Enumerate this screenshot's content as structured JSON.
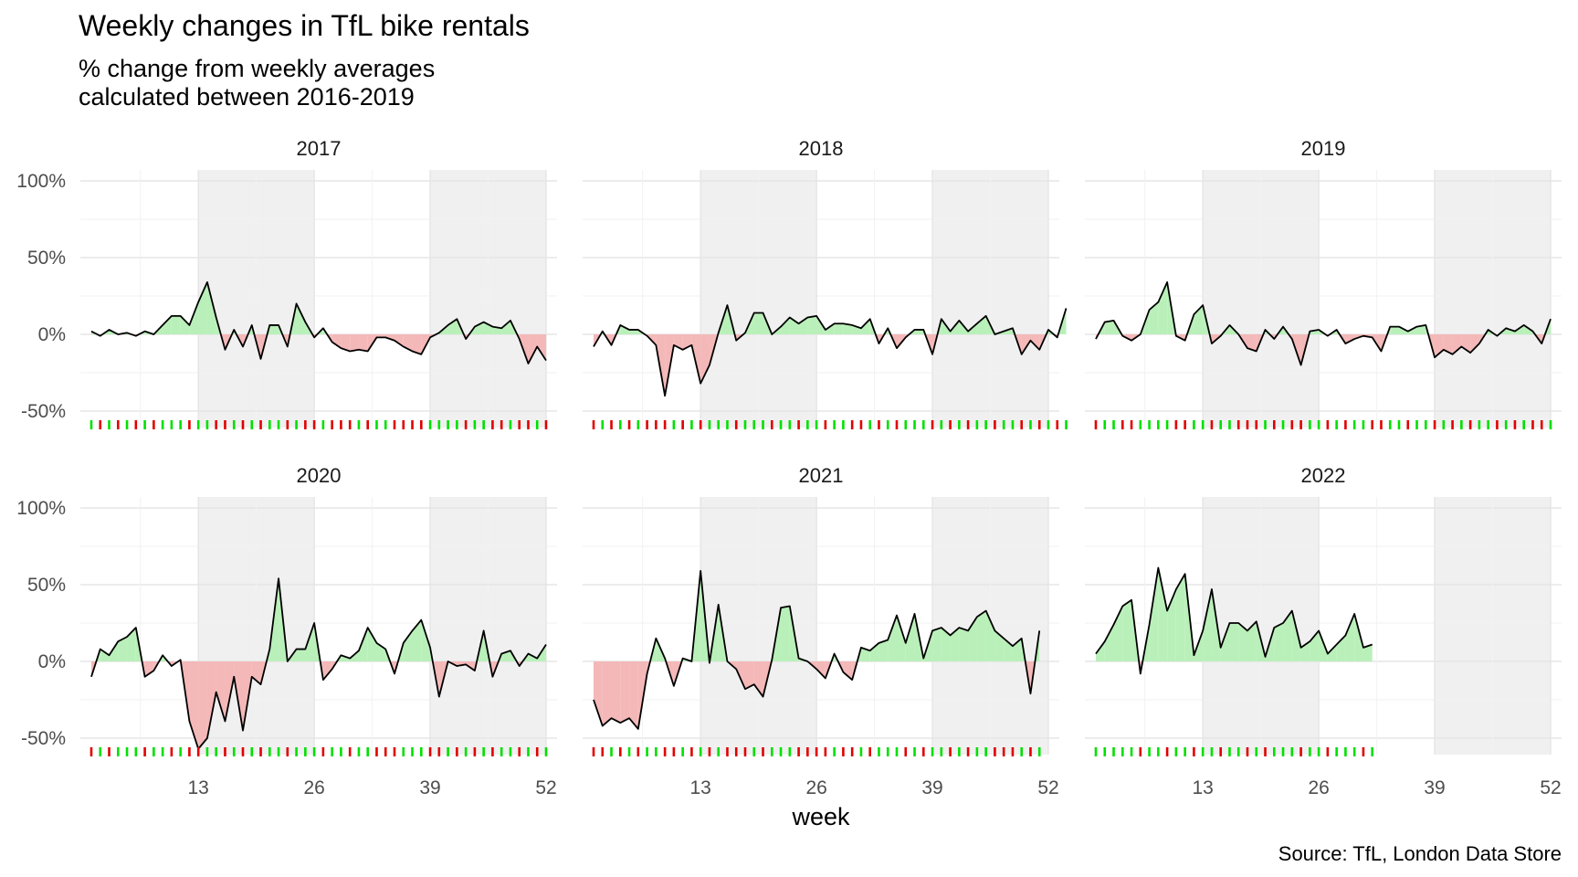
{
  "title": "Weekly changes in TfL bike rentals",
  "subtitle_line1": "% change from weekly averages",
  "subtitle_line2": "calculated between 2016-2019",
  "caption": "Source: TfL, London Data Store",
  "chart_data": {
    "type": "area",
    "xlabel": "week",
    "ylabel": "",
    "x_ticks": [
      13,
      26,
      39,
      52
    ],
    "y_ticks": [
      -50,
      0,
      50,
      100
    ],
    "y_tick_labels": [
      "-50%",
      "0%",
      "50%",
      "100%"
    ],
    "xlim": [
      1,
      52
    ],
    "ylim": [
      -58,
      100
    ],
    "shaded_week_ranges": [
      [
        13,
        26
      ],
      [
        39,
        52
      ]
    ],
    "colors": {
      "positive_fill": "#b9f0b9",
      "negative_fill": "#f4b8b8",
      "line": "#000000",
      "rug_up": "#00e000",
      "rug_down": "#e00000",
      "shade": "#f0f0f0",
      "grid": "#e5e5e5"
    },
    "facets": [
      {
        "year": "2017",
        "values": [
          2,
          -1,
          3,
          0,
          1,
          -1,
          2,
          0,
          6,
          12,
          12,
          6,
          21,
          34,
          11,
          -10,
          3,
          -8,
          6,
          -16,
          6,
          6,
          -8,
          20,
          8,
          -2,
          4,
          -5,
          -9,
          -11,
          -10,
          -11,
          -2,
          -2,
          -4,
          -8,
          -11,
          -13,
          -2,
          1,
          6,
          10,
          -3,
          5,
          8,
          5,
          4,
          9,
          -3,
          -19,
          -8,
          -17
        ]
      },
      {
        "year": "2018",
        "values": [
          -8,
          2,
          -7,
          6,
          3,
          3,
          -1,
          -7,
          -40,
          -7,
          -10,
          -7,
          -32,
          -20,
          1,
          19,
          -4,
          1,
          14,
          14,
          0,
          5,
          11,
          7,
          11,
          12,
          3,
          7,
          7,
          6,
          4,
          10,
          -6,
          4,
          -9,
          -2,
          3,
          3,
          -13,
          10,
          2,
          9,
          2,
          7,
          12,
          0,
          2,
          4,
          -13,
          -4,
          -10,
          3,
          -2,
          17
        ]
      },
      {
        "year": "2019",
        "values": [
          -3,
          8,
          9,
          -1,
          -4,
          0,
          16,
          21,
          34,
          -1,
          -4,
          13,
          19,
          -6,
          -1,
          6,
          0,
          -9,
          -11,
          3,
          -3,
          5,
          -3,
          -20,
          2,
          3,
          -1,
          3,
          -6,
          -3,
          -1,
          -2,
          -11,
          5,
          5,
          2,
          5,
          6,
          -15,
          -10,
          -13,
          -8,
          -12,
          -6,
          3,
          -1,
          4,
          2,
          6,
          2,
          -6,
          10
        ]
      },
      {
        "year": "2020",
        "values": [
          -10,
          8,
          4,
          13,
          16,
          22,
          -10,
          -6,
          4,
          -3,
          1,
          -39,
          -57,
          -50,
          -20,
          -39,
          -10,
          -45,
          -10,
          -15,
          8,
          54,
          0,
          8,
          8,
          25,
          -12,
          -5,
          4,
          2,
          7,
          22,
          12,
          8,
          -8,
          12,
          20,
          27,
          9,
          -23,
          0,
          -3,
          -2,
          -6,
          20,
          -10,
          5,
          7,
          -3,
          5,
          2,
          11
        ]
      },
      {
        "year": "2021",
        "values": [
          -25,
          -42,
          -37,
          -40,
          -37,
          -44,
          -8,
          15,
          2,
          -16,
          2,
          0,
          59,
          -1,
          37,
          0,
          -5,
          -18,
          -15,
          -23,
          1,
          35,
          36,
          2,
          0,
          -5,
          -11,
          5,
          -7,
          -12,
          9,
          7,
          12,
          14,
          30,
          12,
          31,
          2,
          20,
          22,
          17,
          22,
          20,
          29,
          33,
          20,
          15,
          10,
          15,
          -21,
          20
        ]
      },
      {
        "year": "2022",
        "values": [
          5,
          13,
          24,
          36,
          40,
          -8,
          24,
          61,
          33,
          47,
          57,
          4,
          20,
          47,
          9,
          25,
          25,
          20,
          26,
          3,
          22,
          25,
          33,
          9,
          13,
          20,
          5,
          11,
          17,
          31,
          9,
          11
        ]
      }
    ]
  }
}
